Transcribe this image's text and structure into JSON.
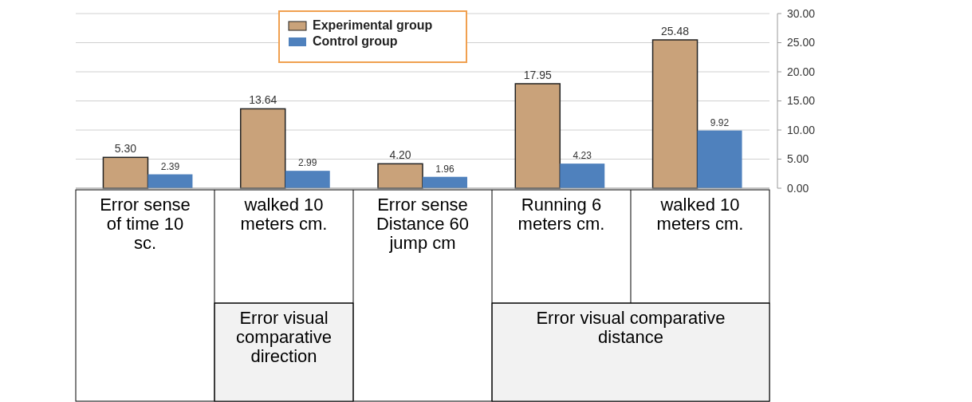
{
  "chart_data": {
    "type": "bar",
    "categories": [
      "Error sense of time 10 sc.",
      "walked 10 meters cm.",
      "Error sense Distance 60 jump cm",
      "Running 6 meters cm.",
      "walked 10 meters cm."
    ],
    "series": [
      {
        "name": "Experimental group",
        "color": "#c9a27a",
        "values": [
          5.3,
          13.64,
          4.2,
          17.95,
          25.48
        ],
        "value_labels": [
          "5.30",
          "13.64",
          "4.20",
          "17.95",
          "25.48"
        ]
      },
      {
        "name": "Control group",
        "color": "#4f81bd",
        "values": [
          2.39,
          2.99,
          1.96,
          4.23,
          9.92
        ],
        "value_labels": [
          "2.39",
          "2.99",
          "1.96",
          "4.23",
          "9.92"
        ]
      }
    ],
    "ylim": [
      0,
      30
    ],
    "yticks": [
      {
        "value": 0,
        "label": "0.00"
      },
      {
        "value": 5,
        "label": "5.00"
      },
      {
        "value": 10,
        "label": "10.00"
      },
      {
        "value": 15,
        "label": "15.00"
      },
      {
        "value": 20,
        "label": "20.00"
      },
      {
        "value": 25,
        "label": "25.00"
      },
      {
        "value": 30,
        "label": "30.00"
      }
    ],
    "grid": "y",
    "legend": "top",
    "annotations": [
      "Error visual comparative direction",
      "Error visual comparative distance"
    ]
  }
}
